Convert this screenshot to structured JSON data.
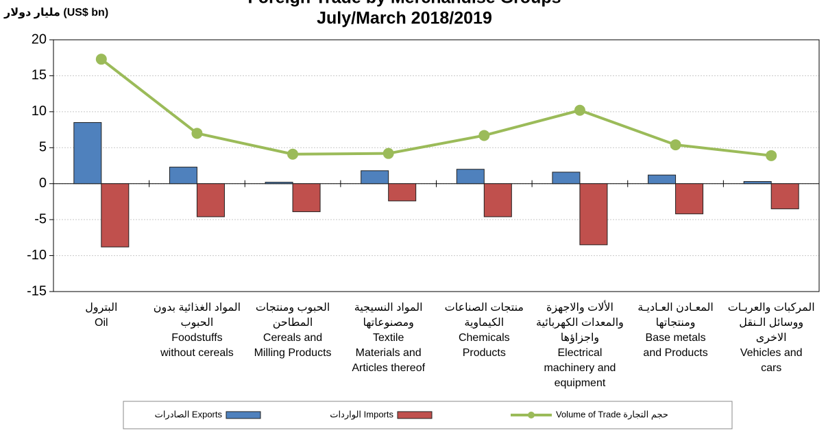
{
  "chart_data": {
    "type": "bar",
    "title": [
      "Foreign Trade by Merchandise Groups",
      "July/March 2018/2019"
    ],
    "y_label": "مليار دولار (US$ bn)",
    "categories": [
      [
        "البترول",
        "Oil"
      ],
      [
        "المواد الغذائية بدون",
        "الحبوب",
        "Foodstuffs",
        "without cereals"
      ],
      [
        "الحبوب ومنتجات",
        "المطاحن",
        "Cereals and",
        "Milling Products"
      ],
      [
        "المواد النسيجية",
        "ومصنوعاتها",
        "Textile",
        "Materials and",
        "Articles thereof"
      ],
      [
        "منتجات الصناعات",
        "الكيماوية",
        "Chemicals",
        "Products"
      ],
      [
        "الألات والاجهزة",
        "والمعدات الكهربائية",
        "واجزاؤها",
        "Electrical",
        "machinery and",
        "equipment"
      ],
      [
        "المعـادن العـاديـة",
        "ومنتجاتها",
        "Base metals",
        "and Products"
      ],
      [
        "المركبات والعربـات",
        "ووسائل الـنقل",
        "الاخرى",
        "Vehicles and",
        "cars"
      ]
    ],
    "series": [
      {
        "name": "الصادرات  Exports",
        "type": "bar",
        "color": "#4f81bd",
        "values": [
          8.5,
          2.3,
          0.2,
          1.8,
          2.0,
          1.6,
          1.2,
          0.3
        ]
      },
      {
        "name": "الواردات Imports",
        "type": "bar",
        "color": "#c0504d",
        "values": [
          -8.8,
          -4.6,
          -3.9,
          -2.4,
          -4.6,
          -8.5,
          -4.2,
          -3.5
        ]
      },
      {
        "name": "Volume of Trade حجم التجارة",
        "type": "line",
        "color": "#9bbb59",
        "values": [
          17.3,
          7.0,
          4.1,
          4.2,
          6.7,
          10.2,
          5.4,
          3.9
        ]
      }
    ],
    "ylim": [
      -15,
      20
    ],
    "yticks": [
      -15,
      -10,
      -5,
      0,
      5,
      10,
      15,
      20
    ],
    "grid": true,
    "legend": "bottom"
  }
}
